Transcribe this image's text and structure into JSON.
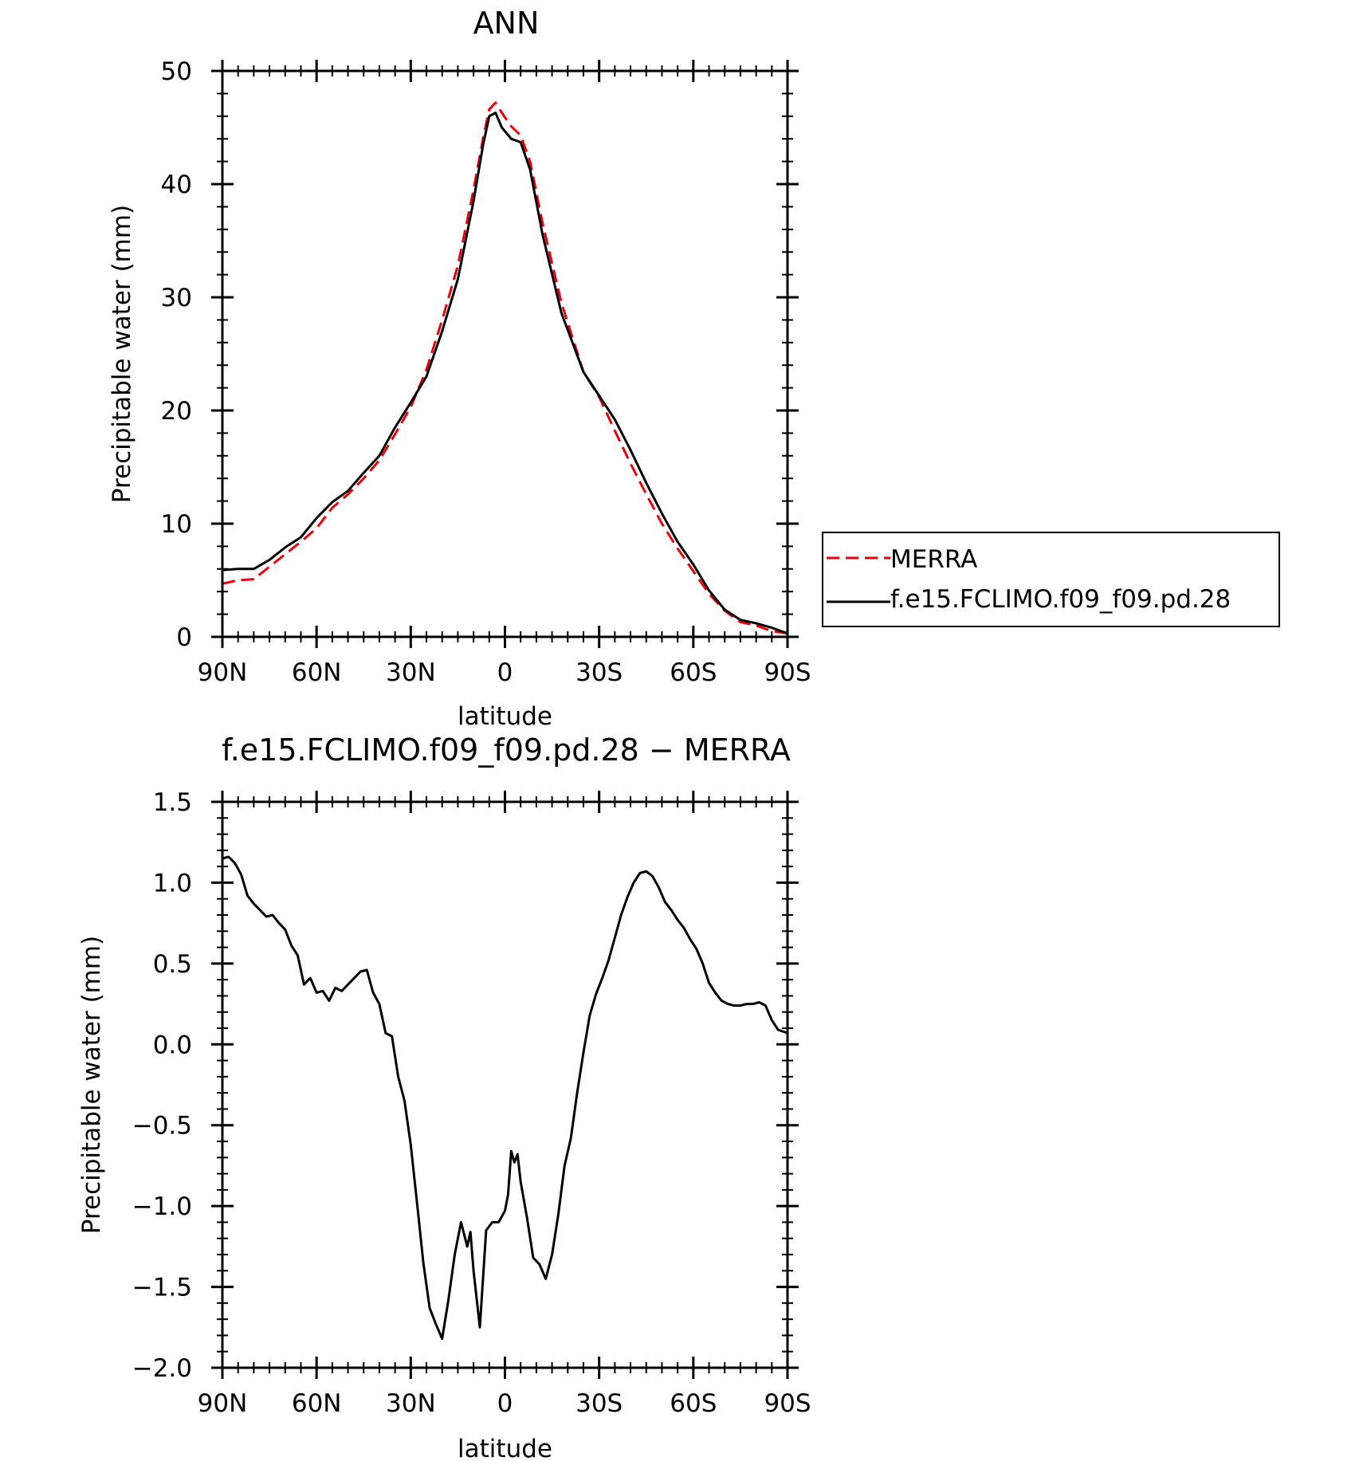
{
  "colors": {
    "merra": "#e8000b",
    "model": "#000000",
    "frame": "#000000"
  },
  "chart_data": [
    {
      "type": "line",
      "title": "ANN",
      "xlabel": "latitude",
      "ylabel": "Precipitable water (mm)",
      "xlim": [
        90,
        -90
      ],
      "ylim": [
        0,
        50
      ],
      "xticks": [
        {
          "v": 90,
          "label": "90N"
        },
        {
          "v": 60,
          "label": "60N"
        },
        {
          "v": 30,
          "label": "30N"
        },
        {
          "v": 0,
          "label": "0"
        },
        {
          "v": -30,
          "label": "30S"
        },
        {
          "v": -60,
          "label": "60S"
        },
        {
          "v": -90,
          "label": "90S"
        }
      ],
      "yticks": [
        {
          "v": 0,
          "label": "0"
        },
        {
          "v": 10,
          "label": "10"
        },
        {
          "v": 20,
          "label": "20"
        },
        {
          "v": 30,
          "label": "30"
        },
        {
          "v": 40,
          "label": "40"
        },
        {
          "v": 50,
          "label": "50"
        }
      ],
      "legend": {
        "placement": "right",
        "entries": [
          "MERRA",
          "f.e15.FCLIMO.f09_f09.pd.28"
        ]
      },
      "series": [
        {
          "name": "MERRA",
          "style": "dashed",
          "points": [
            [
              90,
              4.7
            ],
            [
              85,
              5.0
            ],
            [
              80,
              5.1
            ],
            [
              75,
              6.2
            ],
            [
              70,
              7.3
            ],
            [
              65,
              8.4
            ],
            [
              60,
              9.6
            ],
            [
              55,
              11.4
            ],
            [
              50,
              12.6
            ],
            [
              45,
              14.0
            ],
            [
              40,
              15.6
            ],
            [
              35,
              17.9
            ],
            [
              30,
              20.3
            ],
            [
              25,
              23.6
            ],
            [
              20,
              28.0
            ],
            [
              15,
              32.8
            ],
            [
              10,
              39.5
            ],
            [
              7,
              44.0
            ],
            [
              5,
              46.6
            ],
            [
              3,
              47.2
            ],
            [
              1,
              46.3
            ],
            [
              -2,
              45.1
            ],
            [
              -5,
              44.3
            ],
            [
              -8,
              42.0
            ],
            [
              -12,
              36.5
            ],
            [
              -18,
              29.5
            ],
            [
              -25,
              23.4
            ],
            [
              -30,
              21.2
            ],
            [
              -35,
              18.2
            ],
            [
              -40,
              15.3
            ],
            [
              -45,
              12.6
            ],
            [
              -50,
              10.0
            ],
            [
              -55,
              7.8
            ],
            [
              -60,
              5.8
            ],
            [
              -65,
              3.8
            ],
            [
              -70,
              2.3
            ],
            [
              -75,
              1.3
            ],
            [
              -80,
              1.0
            ],
            [
              -85,
              0.5
            ],
            [
              -90,
              0.3
            ]
          ]
        },
        {
          "name": "f.e15.FCLIMO.f09_f09.pd.28",
          "style": "solid",
          "points": [
            [
              90,
              5.9
            ],
            [
              85,
              6.0
            ],
            [
              80,
              6.0
            ],
            [
              75,
              6.8
            ],
            [
              70,
              7.9
            ],
            [
              65,
              8.8
            ],
            [
              60,
              10.5
            ],
            [
              55,
              11.9
            ],
            [
              50,
              12.9
            ],
            [
              45,
              14.5
            ],
            [
              40,
              16.0
            ],
            [
              35,
              18.5
            ],
            [
              30,
              20.7
            ],
            [
              25,
              23.0
            ],
            [
              20,
              27.0
            ],
            [
              15,
              31.6
            ],
            [
              10,
              38.5
            ],
            [
              7,
              43.4
            ],
            [
              5,
              46.0
            ],
            [
              3,
              46.3
            ],
            [
              1,
              45.0
            ],
            [
              -2,
              44.0
            ],
            [
              -5,
              43.7
            ],
            [
              -8,
              41.3
            ],
            [
              -12,
              35.5
            ],
            [
              -18,
              28.6
            ],
            [
              -25,
              23.4
            ],
            [
              -30,
              21.3
            ],
            [
              -35,
              19.2
            ],
            [
              -40,
              16.5
            ],
            [
              -45,
              13.6
            ],
            [
              -50,
              10.9
            ],
            [
              -55,
              8.4
            ],
            [
              -60,
              6.4
            ],
            [
              -65,
              4.1
            ],
            [
              -70,
              2.4
            ],
            [
              -75,
              1.5
            ],
            [
              -80,
              1.2
            ],
            [
              -85,
              0.8
            ],
            [
              -90,
              0.3
            ]
          ]
        }
      ]
    },
    {
      "type": "line",
      "title": "f.e15.FCLIMO.f09_f09.pd.28 − MERRA",
      "xlabel": "latitude",
      "ylabel": "Precipitable water (mm)",
      "xlim": [
        90,
        -90
      ],
      "ylim": [
        -2.0,
        1.5
      ],
      "xticks": [
        {
          "v": 90,
          "label": "90N"
        },
        {
          "v": 60,
          "label": "60N"
        },
        {
          "v": 30,
          "label": "30N"
        },
        {
          "v": 0,
          "label": "0"
        },
        {
          "v": -30,
          "label": "30S"
        },
        {
          "v": -60,
          "label": "60S"
        },
        {
          "v": -90,
          "label": "90S"
        }
      ],
      "yticks": [
        {
          "v": -2.0,
          "label": "−2.0"
        },
        {
          "v": -1.5,
          "label": "−1.5"
        },
        {
          "v": -1.0,
          "label": "−1.0"
        },
        {
          "v": -0.5,
          "label": "−0.5"
        },
        {
          "v": 0.0,
          "label": "0.0"
        },
        {
          "v": 0.5,
          "label": "0.5"
        },
        {
          "v": 1.0,
          "label": "1.0"
        },
        {
          "v": 1.5,
          "label": "1.5"
        }
      ],
      "series": [
        {
          "name": "f.e15.FCLIMO.f09_f09.pd.28 − MERRA",
          "style": "solid",
          "points": [
            [
              90,
              1.15
            ],
            [
              88,
              1.16
            ],
            [
              86,
              1.12
            ],
            [
              84,
              1.05
            ],
            [
              82,
              0.92
            ],
            [
              80,
              0.87
            ],
            [
              78,
              0.83
            ],
            [
              76,
              0.79
            ],
            [
              74,
              0.8
            ],
            [
              72,
              0.75
            ],
            [
              70,
              0.71
            ],
            [
              68,
              0.61
            ],
            [
              66,
              0.55
            ],
            [
              64,
              0.37
            ],
            [
              62,
              0.41
            ],
            [
              60,
              0.32
            ],
            [
              58,
              0.33
            ],
            [
              56,
              0.27
            ],
            [
              54,
              0.35
            ],
            [
              52,
              0.33
            ],
            [
              50,
              0.37
            ],
            [
              48,
              0.41
            ],
            [
              46,
              0.45
            ],
            [
              44,
              0.46
            ],
            [
              42,
              0.32
            ],
            [
              40,
              0.25
            ],
            [
              38,
              0.07
            ],
            [
              36,
              0.05
            ],
            [
              34,
              -0.2
            ],
            [
              32,
              -0.35
            ],
            [
              30,
              -0.62
            ],
            [
              28,
              -0.98
            ],
            [
              26,
              -1.35
            ],
            [
              24,
              -1.63
            ],
            [
              22,
              -1.73
            ],
            [
              20,
              -1.82
            ],
            [
              18,
              -1.58
            ],
            [
              16,
              -1.3
            ],
            [
              14,
              -1.1
            ],
            [
              12,
              -1.25
            ],
            [
              11,
              -1.16
            ],
            [
              10,
              -1.4
            ],
            [
              8,
              -1.75
            ],
            [
              6,
              -1.15
            ],
            [
              4,
              -1.1
            ],
            [
              2,
              -1.1
            ],
            [
              0,
              -1.03
            ],
            [
              -1,
              -0.93
            ],
            [
              -2,
              -0.66
            ],
            [
              -3,
              -0.73
            ],
            [
              -4,
              -0.68
            ],
            [
              -5,
              -0.85
            ],
            [
              -7,
              -1.07
            ],
            [
              -9,
              -1.32
            ],
            [
              -11,
              -1.36
            ],
            [
              -13,
              -1.45
            ],
            [
              -15,
              -1.3
            ],
            [
              -17,
              -1.05
            ],
            [
              -19,
              -0.75
            ],
            [
              -21,
              -0.58
            ],
            [
              -23,
              -0.3
            ],
            [
              -25,
              -0.05
            ],
            [
              -27,
              0.18
            ],
            [
              -29,
              0.31
            ],
            [
              -31,
              0.41
            ],
            [
              -33,
              0.52
            ],
            [
              -35,
              0.66
            ],
            [
              -37,
              0.8
            ],
            [
              -39,
              0.91
            ],
            [
              -41,
              1.0
            ],
            [
              -43,
              1.06
            ],
            [
              -45,
              1.07
            ],
            [
              -47,
              1.04
            ],
            [
              -49,
              0.97
            ],
            [
              -51,
              0.88
            ],
            [
              -53,
              0.83
            ],
            [
              -55,
              0.77
            ],
            [
              -57,
              0.72
            ],
            [
              -59,
              0.65
            ],
            [
              -61,
              0.59
            ],
            [
              -63,
              0.5
            ],
            [
              -65,
              0.38
            ],
            [
              -67,
              0.32
            ],
            [
              -69,
              0.27
            ],
            [
              -71,
              0.25
            ],
            [
              -73,
              0.24
            ],
            [
              -75,
              0.24
            ],
            [
              -77,
              0.25
            ],
            [
              -79,
              0.25
            ],
            [
              -81,
              0.26
            ],
            [
              -83,
              0.24
            ],
            [
              -85,
              0.15
            ],
            [
              -87,
              0.09
            ],
            [
              -90,
              0.07
            ]
          ]
        }
      ]
    }
  ]
}
